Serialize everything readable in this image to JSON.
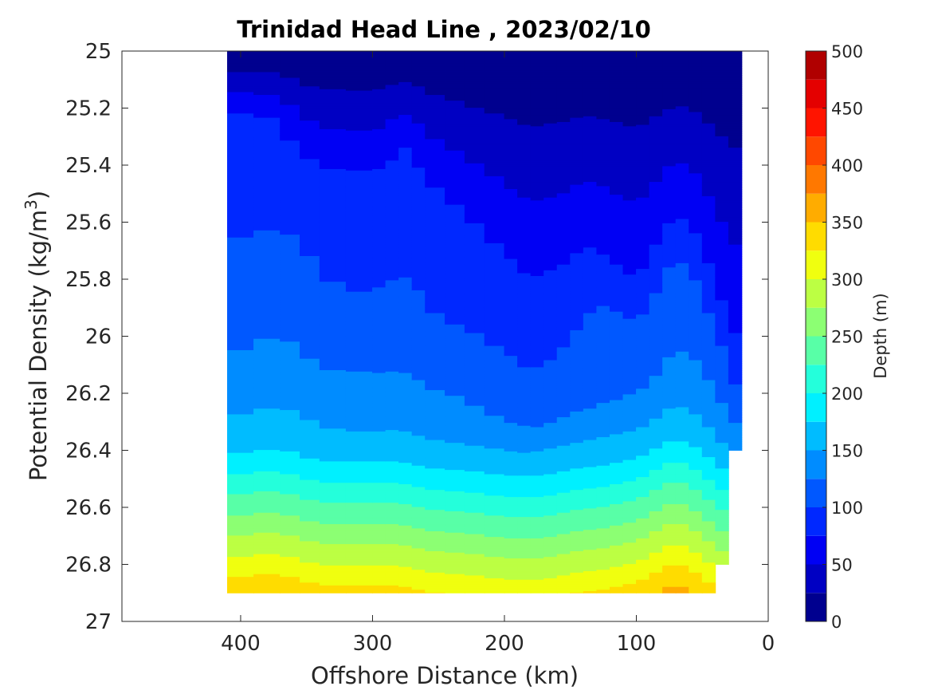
{
  "chart_data": {
    "type": "contour",
    "title": "Trinidad Head Line , 2023/02/10",
    "xlabel": "Offshore Distance (km)",
    "ylabel_prefix": "Potential Density (kg/m",
    "ylabel_sup": "3",
    "ylabel_suffix": ")",
    "x_reversed": true,
    "xlim": [
      0,
      490
    ],
    "ylim": [
      25,
      27
    ],
    "y_reversed": true,
    "x_ticks": [
      400,
      300,
      200,
      100,
      0
    ],
    "x_tick_labels": [
      "400",
      "300",
      "200",
      "100",
      "0"
    ],
    "y_ticks": [
      25,
      25.2,
      25.4,
      25.6,
      25.8,
      26,
      26.2,
      26.4,
      26.6,
      26.8,
      27
    ],
    "y_tick_labels": [
      "25",
      "25.2",
      "25.4",
      "25.6",
      "25.8",
      "26",
      "26.2",
      "26.4",
      "26.6",
      "26.8",
      "27"
    ],
    "grid": false,
    "colorbar": {
      "label": "Depth (m)",
      "range": [
        0,
        500
      ],
      "ticks": [
        500,
        450,
        400,
        350,
        300,
        250,
        200,
        150,
        100,
        50,
        0
      ],
      "tick_labels": [
        "500",
        "450",
        "400",
        "350",
        "300",
        "250",
        "200",
        "150",
        "100",
        "50",
        "0"
      ],
      "level_step": 25,
      "colormap": [
        "#00008f",
        "#0000c3",
        "#0000f4",
        "#0028ff",
        "#0058ff",
        "#008cff",
        "#00bcff",
        "#00f0ff",
        "#24ffdb",
        "#58ffa7",
        "#8cff73",
        "#bcff43",
        "#f0ff0f",
        "#ffdc00",
        "#ffac00",
        "#ff7800",
        "#ff4800",
        "#ff1400",
        "#e40000",
        "#b00000"
      ]
    },
    "x_stations": [
      410,
      390,
      370,
      355,
      340,
      320,
      300,
      290,
      280,
      270,
      260,
      245,
      230,
      215,
      200,
      190,
      180,
      170,
      160,
      150,
      140,
      130,
      120,
      110,
      100,
      90,
      80,
      70,
      60,
      50,
      40,
      30,
      20
    ],
    "isopycnal_depth_contours": [
      {
        "depth_m": 75,
        "density": [
          25.22,
          25.22,
          25.24,
          25.34,
          25.4,
          25.42,
          25.42,
          25.4,
          25.33,
          25.34,
          25.43,
          25.5,
          25.56,
          25.63,
          25.7,
          25.75,
          25.8,
          25.78,
          25.76,
          25.74,
          25.68,
          25.7,
          25.73,
          25.78,
          25.8,
          25.75,
          25.64,
          25.58,
          25.6,
          25.7,
          25.85,
          25.95,
          26.1
        ]
      },
      {
        "depth_m": 100,
        "density": [
          25.68,
          25.63,
          25.63,
          25.66,
          25.78,
          25.85,
          25.84,
          25.82,
          25.79,
          25.8,
          25.9,
          25.95,
          25.97,
          26.02,
          26.05,
          26.1,
          26.12,
          26.1,
          26.07,
          26.01,
          25.95,
          25.88,
          25.9,
          25.92,
          25.95,
          25.88,
          25.78,
          25.72,
          25.76,
          25.82,
          25.95,
          26.08,
          26.22
        ]
      },
      {
        "depth_m": 125,
        "density": [
          26.11,
          26.02,
          26.0,
          26.05,
          26.12,
          26.12,
          26.13,
          26.13,
          26.12,
          26.14,
          26.18,
          26.2,
          26.23,
          26.27,
          26.3,
          26.31,
          26.32,
          26.32,
          26.3,
          26.28,
          26.26,
          26.25,
          26.23,
          26.22,
          26.2,
          26.18,
          26.12,
          26.05,
          26.06,
          26.12,
          26.2,
          26.28,
          26.33
        ]
      },
      {
        "depth_m": 150,
        "density": [
          26.3,
          26.26,
          26.25,
          26.28,
          26.32,
          26.33,
          26.34,
          26.33,
          26.33,
          26.34,
          26.36,
          26.37,
          26.38,
          26.39,
          26.4,
          26.41,
          26.41,
          26.4,
          26.39,
          26.38,
          26.37,
          26.36,
          26.35,
          26.34,
          26.33,
          26.31,
          26.27,
          26.24,
          26.26,
          26.3,
          26.35,
          26.4,
          26.42
        ]
      },
      {
        "depth_m": 175,
        "density": [
          26.42,
          26.4,
          26.4,
          26.42,
          26.44,
          26.44,
          26.44,
          26.44,
          26.44,
          26.45,
          26.46,
          26.47,
          26.47,
          26.48,
          26.49,
          26.49,
          26.49,
          26.49,
          26.48,
          26.47,
          26.46,
          26.46,
          26.45,
          26.44,
          26.43,
          26.41,
          26.38,
          26.36,
          26.38,
          26.41,
          26.45,
          26.48,
          26.5
        ]
      }
    ]
  }
}
